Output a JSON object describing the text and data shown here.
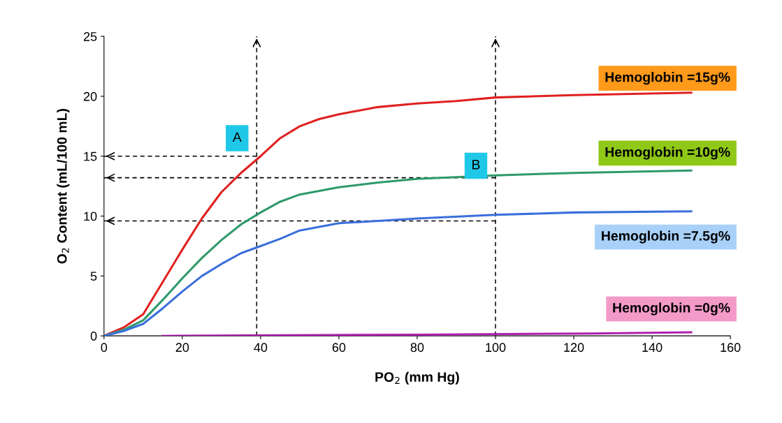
{
  "chart_data": {
    "type": "line",
    "xlabel": "PO$_{2}$ (mm Hg)",
    "ylabel": "O$_{2}$ Content (mL/100 mL)",
    "xlim": [
      0,
      160
    ],
    "xticks": [
      0,
      20,
      40,
      60,
      80,
      100,
      120,
      140,
      160
    ],
    "ylim": [
      0,
      25
    ],
    "yticks": [
      0,
      5,
      10,
      15,
      20,
      25
    ],
    "grid": false,
    "marker": "none",
    "series": [
      {
        "name": "Hemoglobin =15g%",
        "color": "#e02020",
        "x": [
          0,
          5,
          10,
          15,
          20,
          25,
          30,
          35,
          40,
          45,
          50,
          55,
          60,
          70,
          80,
          90,
          100,
          120,
          150
        ],
        "values": [
          0,
          0.7,
          1.8,
          4.5,
          7.2,
          9.8,
          12,
          13.6,
          15,
          16.5,
          17.5,
          18.1,
          18.5,
          19.1,
          19.4,
          19.6,
          19.9,
          20.1,
          20.3
        ]
      },
      {
        "name": "Hemoglobin =10g%",
        "color": "#2e9a6a",
        "x": [
          0,
          5,
          10,
          15,
          20,
          25,
          30,
          35,
          40,
          45,
          50,
          60,
          70,
          80,
          100,
          120,
          150
        ],
        "values": [
          0,
          0.5,
          1.3,
          3,
          4.8,
          6.5,
          8,
          9.3,
          10.3,
          11.2,
          11.8,
          12.4,
          12.8,
          13.1,
          13.4,
          13.6,
          13.8
        ]
      },
      {
        "name": "Hemoglobin =7.5g%",
        "color": "#3a6fdc",
        "x": [
          0,
          5,
          10,
          15,
          20,
          25,
          30,
          35,
          40,
          45,
          50,
          60,
          70,
          80,
          100,
          120,
          150
        ],
        "values": [
          0,
          0.4,
          1,
          2.3,
          3.7,
          5,
          6,
          6.9,
          7.5,
          8.1,
          8.8,
          9.4,
          9.6,
          9.8,
          10.1,
          10.3,
          10.4
        ]
      },
      {
        "name": "Hemoglobin =0g%",
        "color": "#b020b0",
        "x": [
          15,
          80,
          125,
          150
        ],
        "values": [
          0,
          0.1,
          0.2,
          0.3
        ]
      },
      {
        "type": "line",
        "color": "#000000",
        "line_style": "dashed",
        "x": [
          39,
          39
        ],
        "values": [
          0,
          25
        ]
      },
      {
        "type": "line",
        "color": "#000000",
        "line_style": "dashed",
        "x": [
          100,
          100
        ],
        "values": [
          0,
          25
        ]
      },
      {
        "type": "line",
        "color": "#000000",
        "line_style": "dashed",
        "x": [
          39,
          0
        ],
        "values": [
          15,
          15
        ]
      },
      {
        "type": "line",
        "color": "#000000",
        "line_style": "dashed",
        "x": [
          100,
          0
        ],
        "values": [
          13.2,
          13.2
        ]
      },
      {
        "type": "line",
        "color": "#000000",
        "line_style": "dashed",
        "x": [
          100,
          0
        ],
        "values": [
          9.6,
          9.6
        ]
      }
    ],
    "annotations": [
      {
        "text": "A",
        "x": 34,
        "y": 16.5
      },
      {
        "text": "B",
        "x": 95,
        "y": 14.2
      }
    ]
  }
}
